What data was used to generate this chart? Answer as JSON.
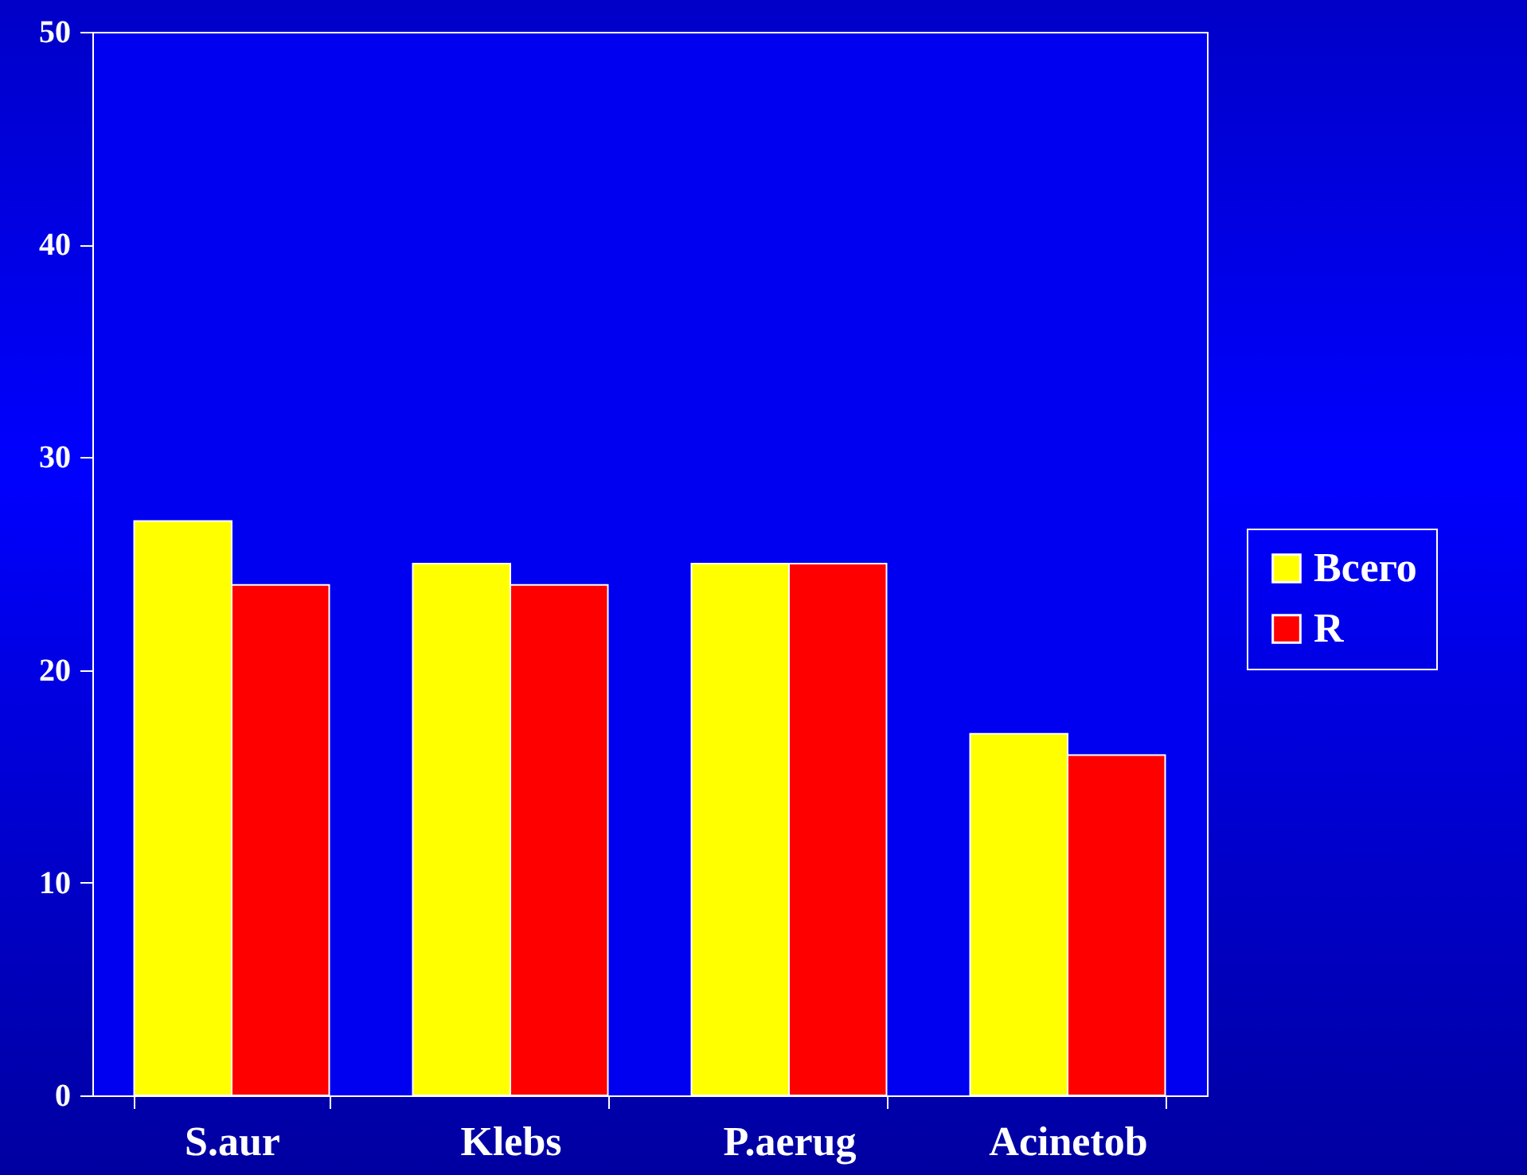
{
  "chart_data": {
    "type": "bar",
    "categories": [
      "S.aur",
      "Klebs",
      "P.aerug",
      "Acinetob"
    ],
    "series": [
      {
        "name": "Всего",
        "color": "#ffff00",
        "values": [
          27,
          25,
          25,
          17
        ]
      },
      {
        "name": "R",
        "color": "#ff0000",
        "values": [
          24,
          24,
          25,
          16
        ]
      }
    ],
    "ylim": [
      0,
      50
    ],
    "yticks": [
      0,
      10,
      20,
      30,
      40,
      50
    ],
    "grid": false,
    "legend": "right"
  }
}
